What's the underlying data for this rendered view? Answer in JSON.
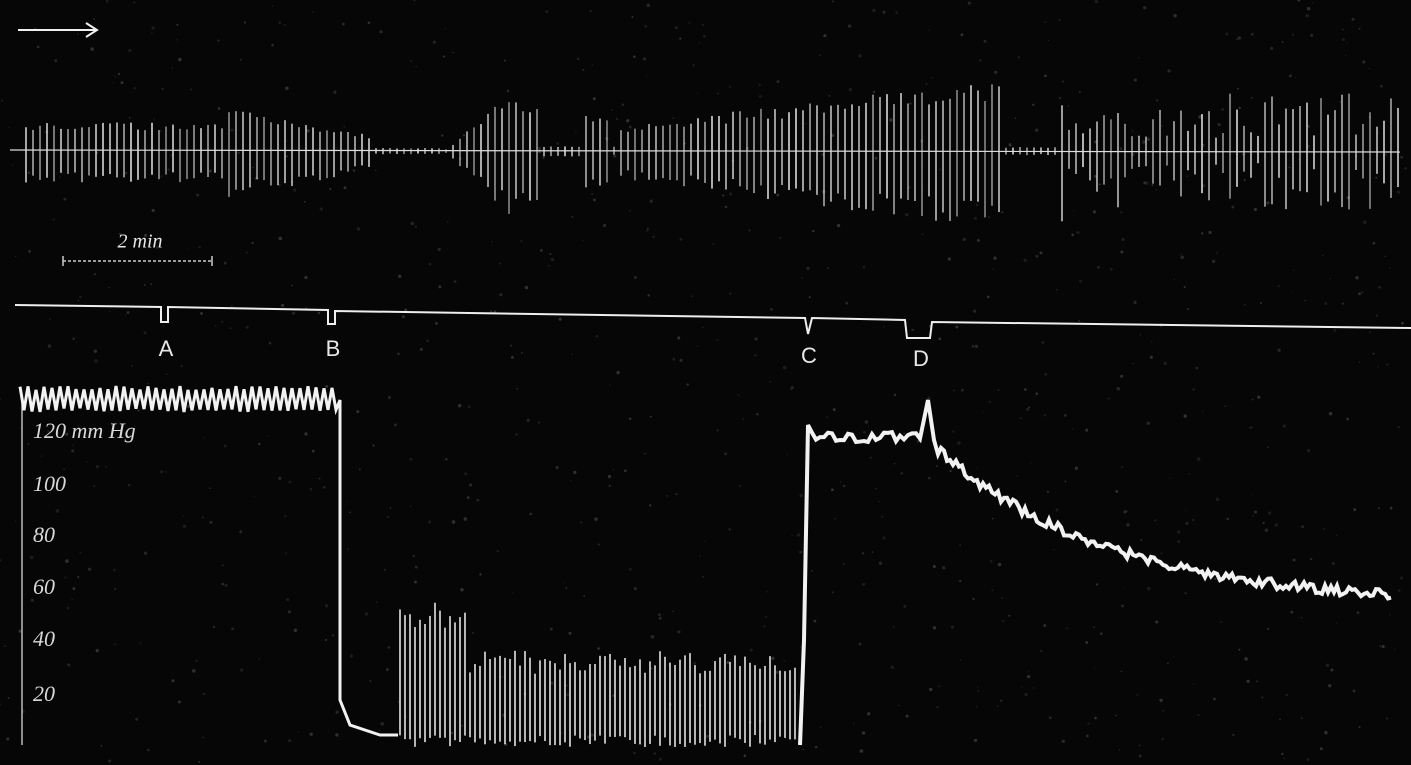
{
  "figure": {
    "time_scale": "2 min",
    "markers": [
      "A",
      "B",
      "C",
      "D"
    ],
    "pressure_axis": {
      "top_label": "120 mm Hg",
      "labels": [
        "100",
        "80",
        "60",
        "40",
        "20"
      ]
    }
  }
}
